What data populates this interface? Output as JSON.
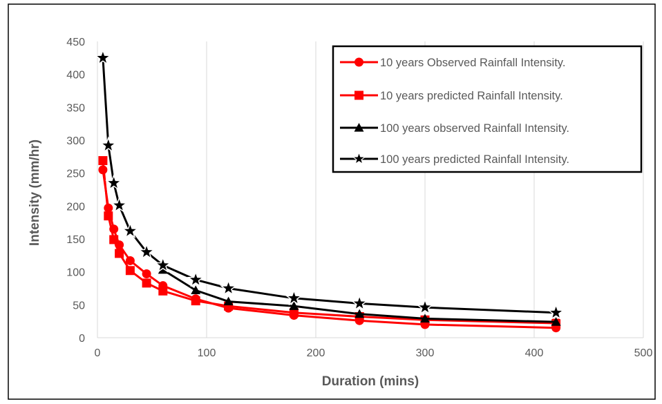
{
  "chart_data": {
    "type": "line",
    "xlabel": "Duration (mins)",
    "ylabel": "Intensity (mm/hr)",
    "xlim": [
      0,
      500
    ],
    "ylim": [
      0,
      450
    ],
    "xticks": [
      0,
      100,
      200,
      300,
      400,
      500
    ],
    "yticks": [
      0,
      50,
      100,
      150,
      200,
      250,
      300,
      350,
      400,
      450
    ],
    "grid": "vertical",
    "legend_position": "top-right",
    "series": [
      {
        "name": "10 years Observed Rainfall Intensity.",
        "color": "#ff0000",
        "marker": "circle",
        "x": [
          5,
          10,
          15,
          20,
          30,
          45,
          60,
          90,
          120,
          180,
          240,
          300,
          420
        ],
        "y": [
          255,
          197,
          165,
          141,
          117,
          97,
          79,
          59,
          45,
          34,
          26,
          20,
          15
        ]
      },
      {
        "name": "10 years predicted Rainfall Intensity.",
        "color": "#ff0000",
        "marker": "square",
        "x": [
          5,
          10,
          15,
          20,
          30,
          45,
          60,
          90,
          120,
          180,
          240,
          300,
          420
        ],
        "y": [
          269,
          185,
          149,
          128,
          102,
          83,
          71,
          56,
          48,
          38,
          32,
          27,
          22
        ]
      },
      {
        "name": "100 years observed Rainfall Intensity.",
        "color": "#000000",
        "marker": "triangle",
        "x": [
          60,
          90,
          120,
          180,
          240,
          300,
          420
        ],
        "y": [
          103,
          72,
          55,
          48,
          36,
          29,
          24
        ]
      },
      {
        "name": "100 years predicted Rainfall Intensity.",
        "color": "#000000",
        "marker": "star",
        "x": [
          5,
          10,
          15,
          20,
          30,
          45,
          60,
          90,
          120,
          180,
          240,
          300,
          420
        ],
        "y": [
          425,
          292,
          235,
          201,
          162,
          130,
          110,
          88,
          75,
          60,
          52,
          46,
          38
        ]
      }
    ]
  }
}
